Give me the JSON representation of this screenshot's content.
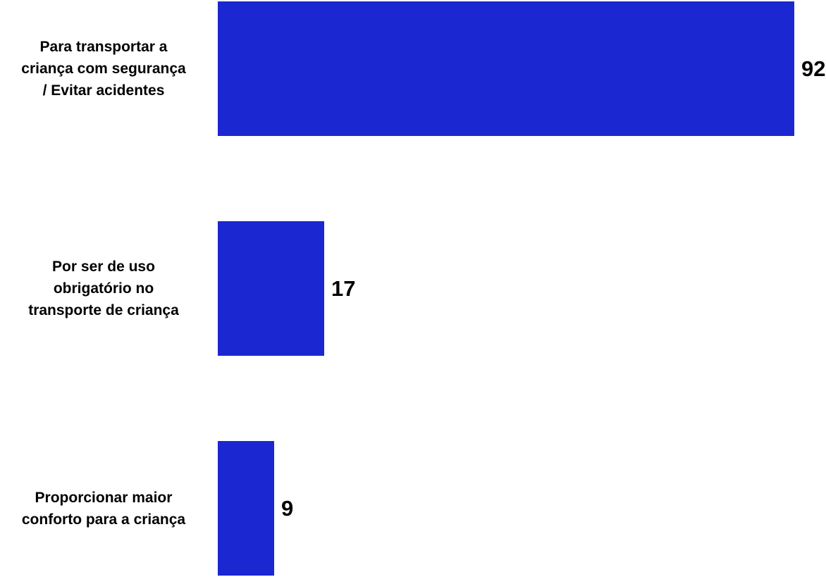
{
  "chart_data": {
    "type": "bar",
    "orientation": "horizontal",
    "categories": [
      [
        "Para transportar a",
        "criança com segurança",
        "/ Evitar acidentes"
      ],
      [
        "Por ser de uso",
        "obrigatório no",
        "transporte de criança"
      ],
      [
        "Proporcionar maior",
        "conforto para a criança"
      ]
    ],
    "values": [
      92,
      17,
      9
    ],
    "value_labels": [
      "92",
      "17",
      "9"
    ],
    "bar_color": "#1b27d0",
    "xlim": [
      0,
      92
    ],
    "grid": false,
    "legend": "none",
    "title": "",
    "xlabel": "",
    "ylabel": ""
  }
}
